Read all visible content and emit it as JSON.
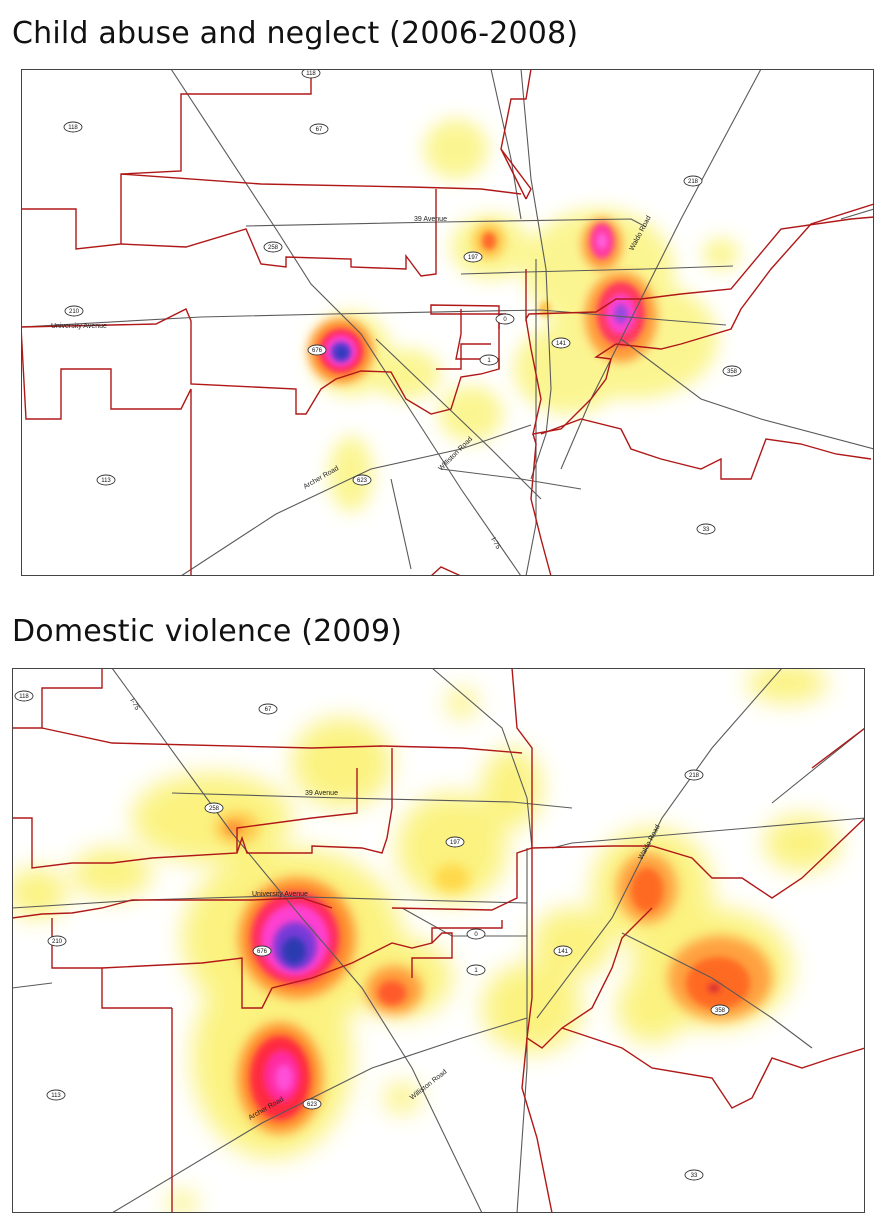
{
  "maps": [
    {
      "title": "Child abuse and neglect (2006-2008)",
      "road_labels": [
        {
          "id": "39-avenue",
          "text": "39 Avenue"
        },
        {
          "id": "university-avenue",
          "text": "University Avenue"
        },
        {
          "id": "waldo-road",
          "text": "Waldo Road"
        },
        {
          "id": "archer-road",
          "text": "Archer Road"
        },
        {
          "id": "williston-road",
          "text": "Williston Road"
        },
        {
          "id": "i-75",
          "text": "I-75"
        }
      ],
      "shields": [
        "118",
        "118",
        "67",
        "218",
        "258",
        "197",
        "210",
        "0",
        "676",
        "1",
        "141",
        "358",
        "113",
        "623",
        "33"
      ],
      "hotspots": [
        {
          "id": "hotspot-west",
          "intensity": 1.0
        },
        {
          "id": "hotspot-waldo",
          "intensity": 0.85
        },
        {
          "id": "hotspot-north-east",
          "intensity": 0.65
        },
        {
          "id": "hotspot-197",
          "intensity": 0.5
        }
      ]
    },
    {
      "title": "Domestic violence (2009)",
      "road_labels": [
        {
          "id": "i-75",
          "text": "I-75"
        },
        {
          "id": "39-avenue",
          "text": "39 Avenue"
        },
        {
          "id": "university-avenue",
          "text": "University Avenue"
        },
        {
          "id": "waldo-road",
          "text": "Waldo Road"
        },
        {
          "id": "archer-road",
          "text": "Archer Road"
        },
        {
          "id": "williston-road",
          "text": "Williston Road"
        }
      ],
      "shields": [
        "118",
        "67",
        "218",
        "258",
        "197",
        "210",
        "0",
        "676",
        "1",
        "141",
        "358",
        "113",
        "623",
        "33"
      ],
      "hotspots": [
        {
          "id": "hotspot-west",
          "intensity": 1.0
        },
        {
          "id": "hotspot-archer",
          "intensity": 0.85
        },
        {
          "id": "hotspot-east",
          "intensity": 0.6
        },
        {
          "id": "hotspot-waldo",
          "intensity": 0.5
        },
        {
          "id": "hotspot-center",
          "intensity": 0.45
        }
      ]
    }
  ],
  "colors": {
    "boundary": "#b01818",
    "road": "#5a5a5a",
    "heat_low": "#ffff66",
    "heat_mid": "#ff8a2a",
    "heat_high": "#ff2fbf",
    "heat_peak": "#3a3ad0"
  }
}
